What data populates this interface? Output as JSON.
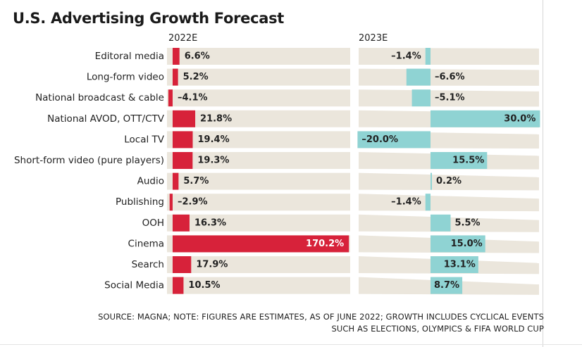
{
  "chart_data": {
    "type": "bar",
    "title": "U.S. Advertising Growth Forecast",
    "categories": [
      "Editoral media",
      "Long-form video",
      "National broadcast & cable",
      "National AVOD, OTT/CTV",
      "Local TV",
      "Short-form video (pure players)",
      "Audio",
      "Publishing",
      "OOH",
      "Cinema",
      "Search",
      "Social Media"
    ],
    "series": [
      {
        "name": "2022E",
        "values": [
          6.6,
          5.2,
          -4.1,
          21.8,
          19.4,
          19.3,
          5.7,
          -2.9,
          16.3,
          170.2,
          17.9,
          10.5
        ],
        "labels": [
          "6.6%",
          "5.2%",
          "–4.1%",
          "21.8%",
          "19.4%",
          "19.3%",
          "5.7%",
          "–2.9%",
          "16.3%",
          "170.2%",
          "17.9%",
          "10.5%"
        ],
        "color": "#d7223a"
      },
      {
        "name": "2023E",
        "values": [
          -1.4,
          -6.6,
          -5.1,
          30.0,
          -20.0,
          15.5,
          0.2,
          -1.4,
          5.5,
          15.0,
          13.1,
          8.7
        ],
        "labels": [
          "–1.4%",
          "–6.6%",
          "–5.1%",
          "30.0%",
          "–20.0%",
          "15.5%",
          "0.2%",
          "–1.4%",
          "5.5%",
          "15.0%",
          "13.1%",
          "8.7%"
        ],
        "color": "#8fd3d3"
      }
    ],
    "background_color": "#ebe6dc",
    "grid": false,
    "legend": "none"
  },
  "source_lines": [
    "SOURCE: MAGNA; NOTE: FIGURES ARE ESTIMATES, AS OF JUNE 2022; GROWTH INCLUDES CYCLICAL EVENTS",
    "SUCH AS ELECTIONS, OLYMPICS & FIFA WORLD CUP"
  ]
}
